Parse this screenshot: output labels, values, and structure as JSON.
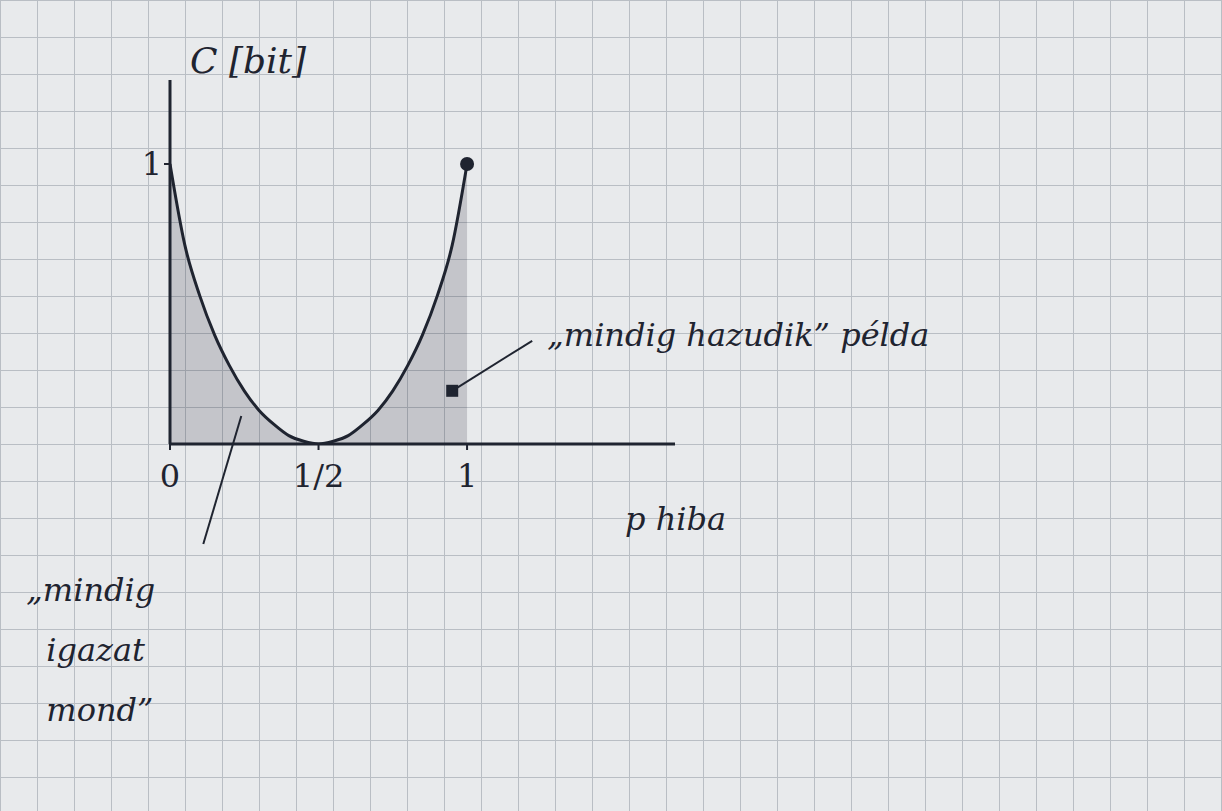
{
  "chart_data": {
    "type": "area",
    "x_label": "p hiba",
    "y_label": "C [bit]",
    "x": [
      0,
      0.05,
      0.1,
      0.15,
      0.2,
      0.25,
      0.3,
      0.35,
      0.4,
      0.45,
      0.5,
      0.55,
      0.6,
      0.65,
      0.7,
      0.75,
      0.8,
      0.85,
      0.9,
      0.95,
      1
    ],
    "values": [
      1,
      0.71,
      0.53,
      0.39,
      0.28,
      0.19,
      0.12,
      0.07,
      0.03,
      0.01,
      0,
      0.01,
      0.03,
      0.07,
      0.12,
      0.19,
      0.28,
      0.39,
      0.53,
      0.71,
      1
    ],
    "color": "#1f2430",
    "xlim": [
      0,
      1.7
    ],
    "ylim": [
      0,
      1.3
    ],
    "xticks": [
      0,
      {
        "value": 0.5,
        "label": "1/2"
      },
      1
    ],
    "yticks": [
      1
    ],
    "annotations": [
      {
        "text": "„mindig igazat mond”",
        "x": 0.24,
        "y": 0.1
      },
      {
        "text": "„mindig hazudik” példa",
        "x": 0.95,
        "y": 0.19
      }
    ]
  }
}
